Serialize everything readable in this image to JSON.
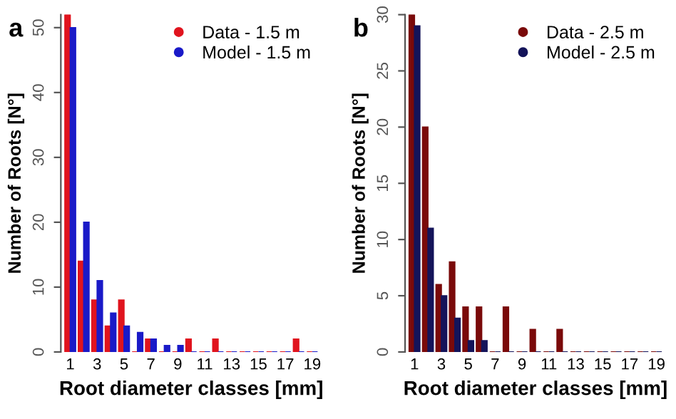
{
  "chart_data": [
    {
      "type": "bar",
      "title": "a",
      "xlabel": "Root diameter classes [mm]",
      "ylabel": "Number of Roots [N°]",
      "categories": [
        "1",
        null,
        "3",
        null,
        "5",
        null,
        "7",
        null,
        "9",
        null,
        "11",
        null,
        "13",
        null,
        "15",
        null,
        "17",
        null,
        "19"
      ],
      "series": [
        {
          "name": "Data - 1.5 m",
          "color": "#e0141e",
          "values": [
            52,
            14,
            8,
            4,
            8,
            0,
            2,
            0,
            0,
            2,
            0,
            2,
            0,
            0,
            0,
            0,
            0,
            2,
            0
          ]
        },
        {
          "name": "Model - 1.5 m",
          "color": "#1a1ac8",
          "values": [
            50,
            20,
            11,
            6,
            4,
            3,
            2,
            1,
            1,
            0,
            0,
            0,
            0,
            0,
            0,
            0,
            0,
            0,
            0
          ]
        }
      ],
      "ylim": [
        0,
        52
      ],
      "yticks": [
        0,
        10,
        20,
        30,
        40,
        50
      ],
      "grid": false,
      "legend": "top right"
    },
    {
      "type": "bar",
      "title": "b",
      "xlabel": "Root diameter classes [mm]",
      "ylabel": "Number of Roots [N°]",
      "categories": [
        "1",
        null,
        "3",
        null,
        "5",
        null,
        "7",
        null,
        "9",
        null,
        "11",
        null,
        "13",
        null,
        "15",
        null,
        "17",
        null,
        "19"
      ],
      "series": [
        {
          "name": "Data - 2.5 m",
          "color": "#7a0a0a",
          "values": [
            30,
            20,
            6,
            8,
            4,
            4,
            0,
            4,
            0,
            2,
            0,
            2,
            0,
            0,
            0,
            0,
            0,
            0,
            0
          ]
        },
        {
          "name": "Model - 2.5 m",
          "color": "#14145a",
          "values": [
            29,
            11,
            5,
            3,
            1,
            1,
            0,
            0,
            0,
            0,
            0,
            0,
            0,
            0,
            0,
            0,
            0,
            0,
            0
          ]
        }
      ],
      "ylim": [
        0,
        30
      ],
      "yticks": [
        0,
        5,
        10,
        15,
        20,
        25,
        30
      ],
      "grid": false,
      "legend": "top right"
    }
  ]
}
